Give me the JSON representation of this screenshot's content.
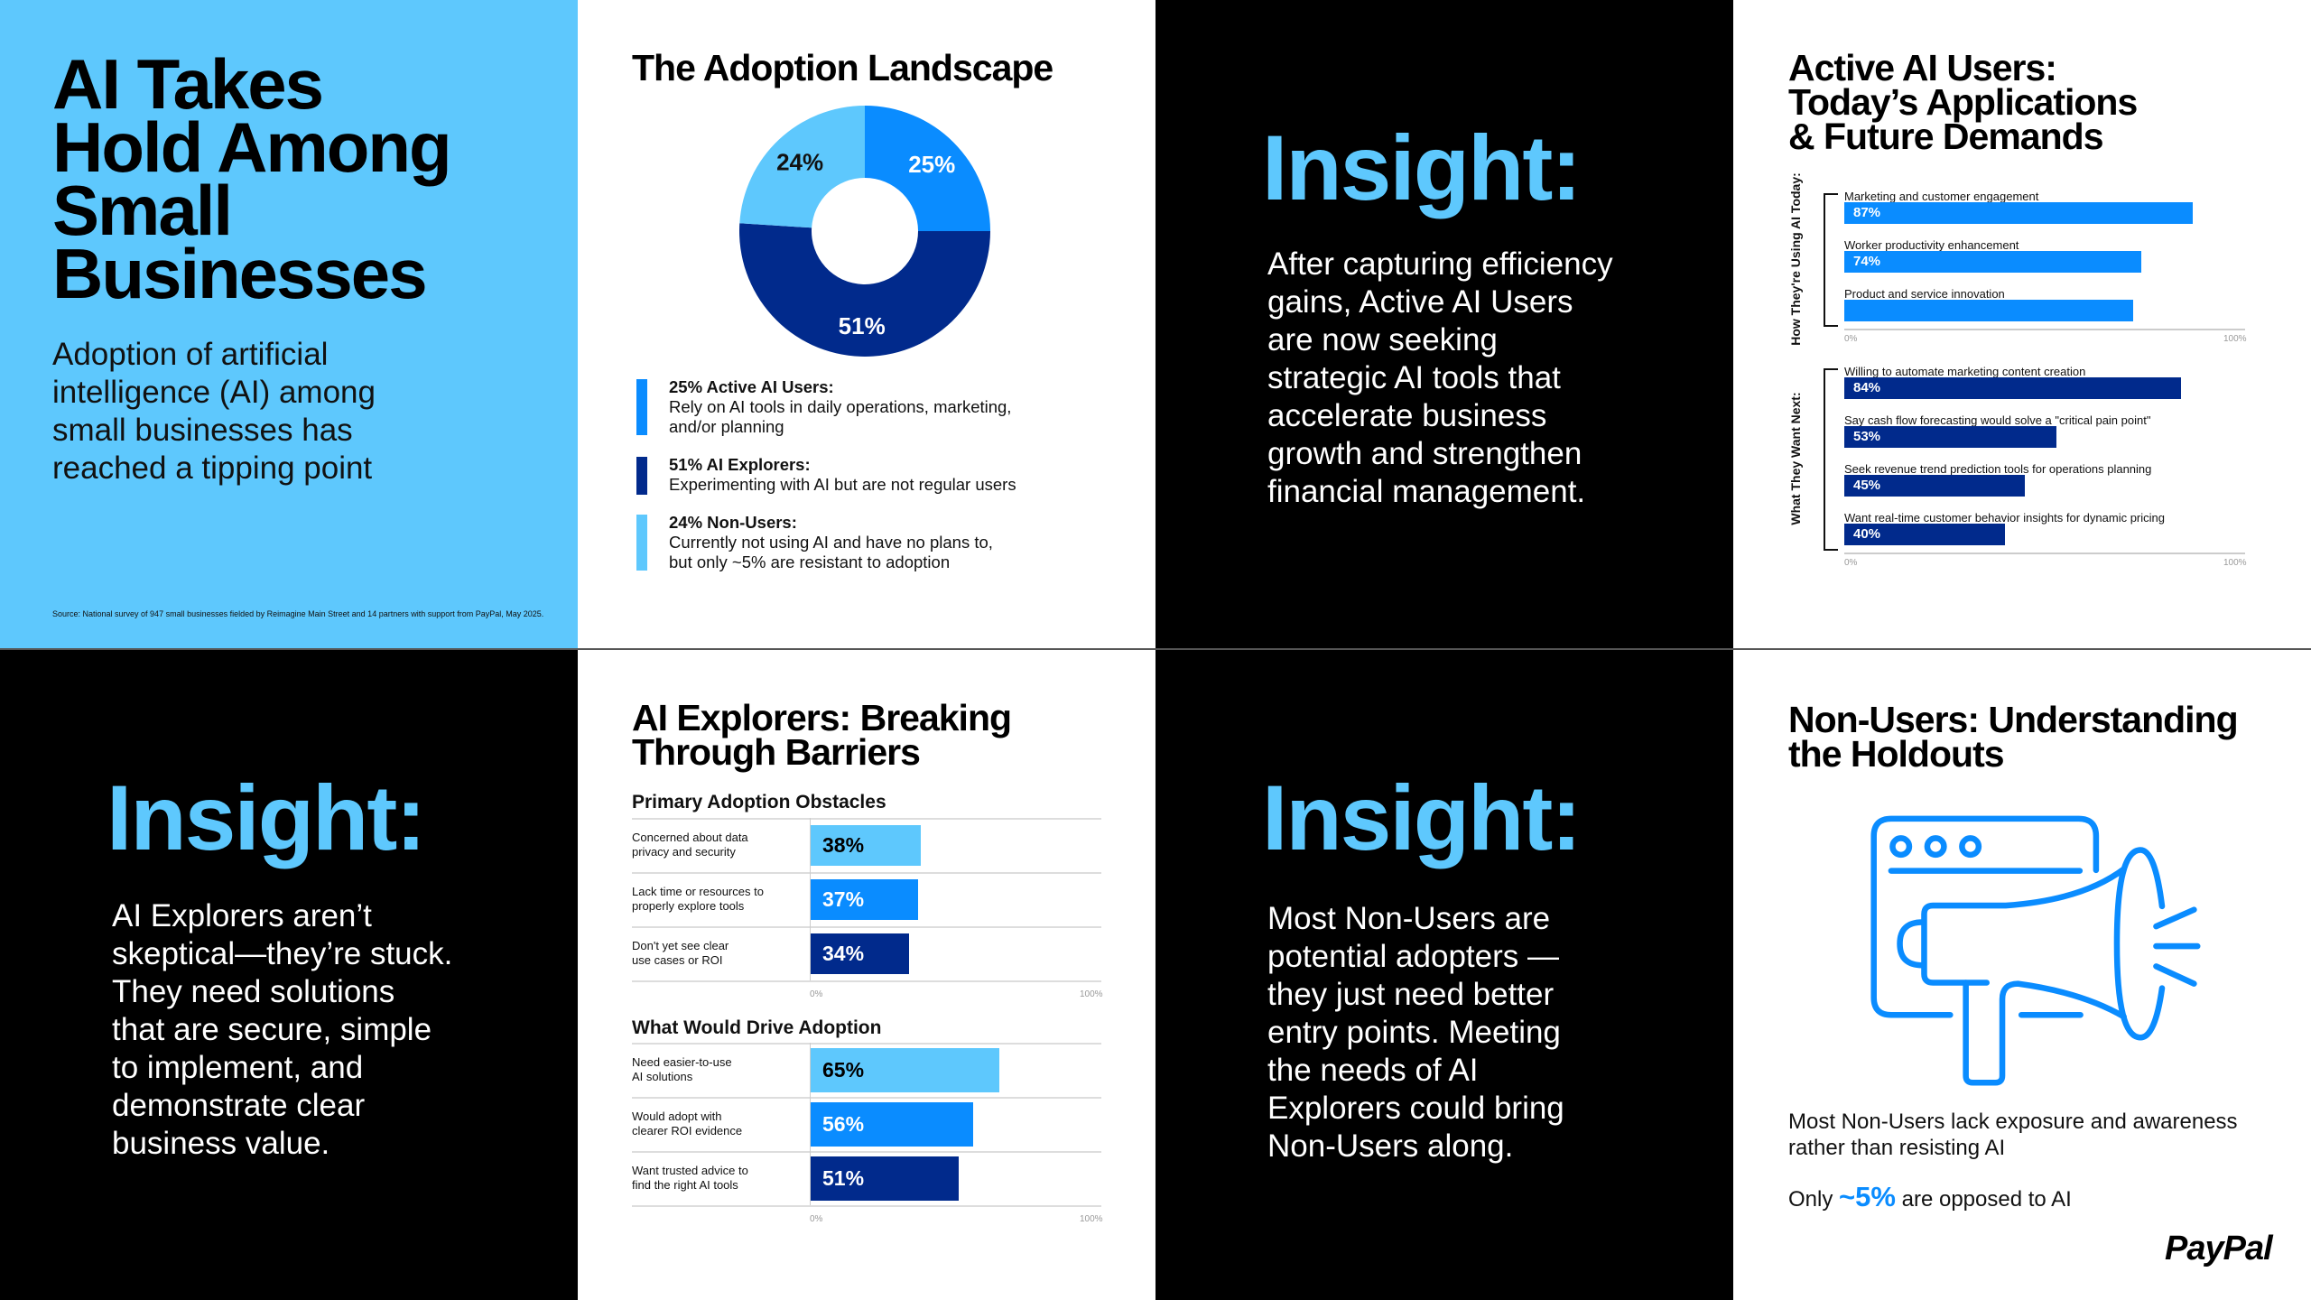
{
  "panel1": {
    "title_lines": [
      "AI Takes",
      "Hold Among",
      "Small",
      "Businesses"
    ],
    "subtitle_lines": [
      "Adoption of artificial",
      "intelligence (AI) among",
      "small businesses has",
      "reached a tipping point"
    ],
    "source": "Source: National survey of 947 small businesses fielded by Reimagine Main Street and 14 partners with support from PayPal, May 2025."
  },
  "panel2": {
    "title": "The Adoption Landscape",
    "legend": [
      {
        "heading": "25% Active AI Users:",
        "lines": [
          "Rely on AI tools in daily operations, marketing,",
          "and/or planning"
        ]
      },
      {
        "heading": "51% AI Explorers:",
        "lines": [
          "Experimenting with AI but are not regular users"
        ]
      },
      {
        "heading": "24% Non-Users:",
        "lines": [
          "Currently not using AI and have no plans to,",
          "but only ~5% are resistant to adoption"
        ]
      }
    ]
  },
  "panel3": {
    "heading": "Insight:",
    "body_lines": [
      "After capturing efficiency",
      "gains, Active AI Users",
      "are now seeking",
      "strategic AI tools that",
      "accelerate business",
      "growth and strengthen",
      "financial management."
    ]
  },
  "panel4": {
    "title_lines": [
      "Active AI Users:",
      "Today’s Applications",
      "& Future Demands"
    ]
  },
  "panel5": {
    "heading": "Insight:",
    "body_lines": [
      "AI Explorers aren’t",
      "skeptical—they’re stuck.",
      "They need solutions",
      "that are secure, simple",
      "to implement, and",
      "demonstrate clear",
      "business value."
    ]
  },
  "panel6": {
    "title_lines": [
      "AI Explorers: Breaking",
      "Through Barriers"
    ]
  },
  "panel7": {
    "heading": "Insight:",
    "body_lines": [
      "Most Non-Users are",
      "potential adopters —",
      "they just need better",
      "entry points. Meeting",
      "the needs of AI",
      "Explorers could bring",
      "Non-Users along."
    ]
  },
  "panel8": {
    "title_lines": [
      "Non-Users: Understanding",
      "the Holdouts"
    ],
    "icon": "megaphone-browser-icon",
    "text_lines": [
      "Most Non-Users lack exposure and awareness",
      "rather than resisting AI"
    ],
    "only_prefix": "Only",
    "only_value": "~5%",
    "only_suffix": "are opposed to AI",
    "logo": "PayPal"
  },
  "colors": {
    "light_blue": "#5ec8fd",
    "bright_blue": "#0a8cff",
    "dark_blue": "#012a8c",
    "black": "#000000",
    "white": "#ffffff"
  },
  "chart_data": [
    {
      "type": "pie",
      "title": "The Adoption Landscape",
      "categories": [
        "Active AI Users",
        "AI Explorers",
        "Non-Users"
      ],
      "values": [
        25,
        51,
        24
      ],
      "data_labels": [
        "25%",
        "51%",
        "24%"
      ],
      "colors": [
        "#0a8cff",
        "#012a8c",
        "#5ec8fd"
      ],
      "donut": true
    },
    {
      "type": "bar",
      "orientation": "horizontal",
      "group_label": "How They're Using AI Today:",
      "categories": [
        "Marketing and customer engagement",
        "Worker productivity enhancement",
        "Product and service innovation"
      ],
      "values": [
        87,
        74,
        72
      ],
      "data_labels": [
        "87%",
        "74%",
        ""
      ],
      "color": "#0a8cff",
      "xlim": [
        0,
        100
      ],
      "tick_labels": [
        "0%",
        "100%"
      ]
    },
    {
      "type": "bar",
      "orientation": "horizontal",
      "group_label": "What They Want Next:",
      "categories": [
        "Willing to automate marketing content creation",
        "Say cash flow forecasting would solve a \"critical pain point\"",
        "Seek revenue trend prediction tools for operations planning",
        "Want real-time customer behavior insights for dynamic pricing"
      ],
      "values": [
        84,
        53,
        45,
        40
      ],
      "data_labels": [
        "84%",
        "53%",
        "45%",
        "40%"
      ],
      "color": "#012a8c",
      "xlim": [
        0,
        100
      ],
      "tick_labels": [
        "0%",
        "100%"
      ]
    },
    {
      "type": "bar",
      "orientation": "horizontal",
      "title": "Primary Adoption Obstacles",
      "categories": [
        [
          "Concerned about data",
          "privacy and security"
        ],
        [
          "Lack time or resources to",
          "properly explore tools"
        ],
        [
          "Don't yet see clear",
          "use cases or ROI"
        ]
      ],
      "values": [
        38,
        37,
        34
      ],
      "data_labels": [
        "38%",
        "37%",
        "34%"
      ],
      "colors": [
        "#5ec8fd",
        "#0a8cff",
        "#012a8c"
      ],
      "xlim": [
        0,
        100
      ],
      "tick_labels": [
        "0%",
        "100%"
      ]
    },
    {
      "type": "bar",
      "orientation": "horizontal",
      "title": "What Would Drive Adoption",
      "categories": [
        [
          "Need easier-to-use",
          "AI solutions"
        ],
        [
          "Would adopt with",
          "clearer ROI evidence"
        ],
        [
          "Want trusted advice to",
          "find the right AI tools"
        ]
      ],
      "values": [
        65,
        56,
        51
      ],
      "data_labels": [
        "65%",
        "56%",
        "51%"
      ],
      "colors": [
        "#5ec8fd",
        "#0a8cff",
        "#012a8c"
      ],
      "xlim": [
        0,
        100
      ],
      "tick_labels": [
        "0%",
        "100%"
      ]
    }
  ]
}
